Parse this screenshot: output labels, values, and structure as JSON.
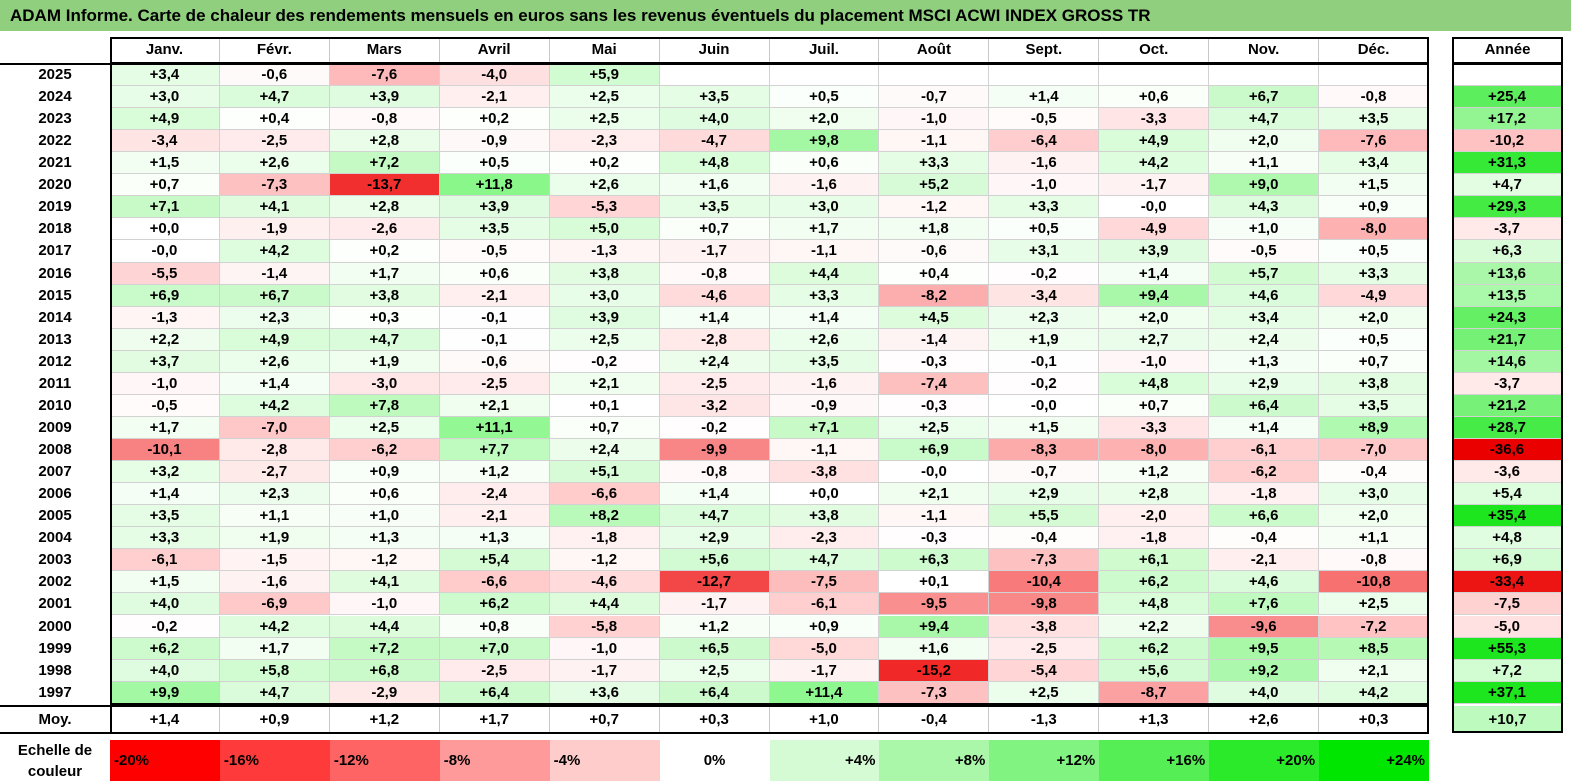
{
  "title": "ADAM Informe. Carte de chaleur des rendements mensuels en euros sans les revenus éventuels du placement MSCI ACWI INDEX GROSS TR",
  "chart_data": {
    "type": "heatmap",
    "title": "ADAM Informe. Carte de chaleur des rendements mensuels en euros sans les revenus éventuels du placement MSCI ACWI INDEX GROSS TR",
    "columns": [
      "Janv.",
      "Févr.",
      "Mars",
      "Avril",
      "Mai",
      "Juin",
      "Juil.",
      "Août",
      "Sept.",
      "Oct.",
      "Nov.",
      "Déc."
    ],
    "year_column_label": "Année",
    "rows": [
      {
        "year": "2025",
        "values": [
          "+3,4",
          "-0,6",
          "-7,6",
          "-4,0",
          "+5,9",
          "",
          "",
          "",
          "",
          "",
          "",
          ""
        ],
        "annual": ""
      },
      {
        "year": "2024",
        "values": [
          "+3,0",
          "+4,7",
          "+3,9",
          "-2,1",
          "+2,5",
          "+3,5",
          "+0,5",
          "-0,7",
          "+1,4",
          "+0,6",
          "+6,7",
          "-0,8"
        ],
        "annual": "+25,4"
      },
      {
        "year": "2023",
        "values": [
          "+4,9",
          "+0,4",
          "-0,8",
          "+0,2",
          "+2,5",
          "+4,0",
          "+2,0",
          "-1,0",
          "-0,5",
          "-3,3",
          "+4,7",
          "+3,5"
        ],
        "annual": "+17,2"
      },
      {
        "year": "2022",
        "values": [
          "-3,4",
          "-2,5",
          "+2,8",
          "-0,9",
          "-2,3",
          "-4,7",
          "+9,8",
          "-1,1",
          "-6,4",
          "+4,9",
          "+2,0",
          "-7,6"
        ],
        "annual": "-10,2"
      },
      {
        "year": "2021",
        "values": [
          "+1,5",
          "+2,6",
          "+7,2",
          "+0,5",
          "+0,2",
          "+4,8",
          "+0,6",
          "+3,3",
          "-1,6",
          "+4,2",
          "+1,1",
          "+3,4"
        ],
        "annual": "+31,3"
      },
      {
        "year": "2020",
        "values": [
          "+0,7",
          "-7,3",
          "-13,7",
          "+11,8",
          "+2,6",
          "+1,6",
          "-1,6",
          "+5,2",
          "-1,0",
          "-1,7",
          "+9,0",
          "+1,5"
        ],
        "annual": "+4,7"
      },
      {
        "year": "2019",
        "values": [
          "+7,1",
          "+4,1",
          "+2,8",
          "+3,9",
          "-5,3",
          "+3,5",
          "+3,0",
          "-1,2",
          "+3,3",
          "-0,0",
          "+4,3",
          "+0,9"
        ],
        "annual": "+29,3"
      },
      {
        "year": "2018",
        "values": [
          "+0,0",
          "-1,9",
          "-2,6",
          "+3,5",
          "+5,0",
          "+0,7",
          "+1,7",
          "+1,8",
          "+0,5",
          "-4,9",
          "+1,0",
          "-8,0"
        ],
        "annual": "-3,7"
      },
      {
        "year": "2017",
        "values": [
          "-0,0",
          "+4,2",
          "+0,2",
          "-0,5",
          "-1,3",
          "-1,7",
          "-1,1",
          "-0,6",
          "+3,1",
          "+3,9",
          "-0,5",
          "+0,5"
        ],
        "annual": "+6,3"
      },
      {
        "year": "2016",
        "values": [
          "-5,5",
          "-1,4",
          "+1,7",
          "+0,6",
          "+3,8",
          "-0,8",
          "+4,4",
          "+0,4",
          "-0,2",
          "+1,4",
          "+5,7",
          "+3,3"
        ],
        "annual": "+13,6"
      },
      {
        "year": "2015",
        "values": [
          "+6,9",
          "+6,7",
          "+3,8",
          "-2,1",
          "+3,0",
          "-4,6",
          "+3,3",
          "-8,2",
          "-3,4",
          "+9,4",
          "+4,6",
          "-4,9"
        ],
        "annual": "+13,5"
      },
      {
        "year": "2014",
        "values": [
          "-1,3",
          "+2,3",
          "+0,3",
          "-0,1",
          "+3,9",
          "+1,4",
          "+1,4",
          "+4,5",
          "+2,3",
          "+2,0",
          "+3,4",
          "+2,0"
        ],
        "annual": "+24,3"
      },
      {
        "year": "2013",
        "values": [
          "+2,2",
          "+4,9",
          "+4,7",
          "-0,1",
          "+2,5",
          "-2,8",
          "+2,6",
          "-1,4",
          "+1,9",
          "+2,7",
          "+2,4",
          "+0,5"
        ],
        "annual": "+21,7"
      },
      {
        "year": "2012",
        "values": [
          "+3,7",
          "+2,6",
          "+1,9",
          "-0,6",
          "-0,2",
          "+2,4",
          "+3,5",
          "-0,3",
          "-0,1",
          "-1,0",
          "+1,3",
          "+0,7"
        ],
        "annual": "+14,6"
      },
      {
        "year": "2011",
        "values": [
          "-1,0",
          "+1,4",
          "-3,0",
          "-2,5",
          "+2,1",
          "-2,5",
          "-1,6",
          "-7,4",
          "-0,2",
          "+4,8",
          "+2,9",
          "+3,8"
        ],
        "annual": "-3,7"
      },
      {
        "year": "2010",
        "values": [
          "-0,5",
          "+4,2",
          "+7,8",
          "+2,1",
          "+0,1",
          "-3,2",
          "-0,9",
          "-0,3",
          "-0,0",
          "+0,7",
          "+6,4",
          "+3,5"
        ],
        "annual": "+21,2"
      },
      {
        "year": "2009",
        "values": [
          "+1,7",
          "-7,0",
          "+2,5",
          "+11,1",
          "+0,7",
          "-0,2",
          "+7,1",
          "+2,5",
          "+1,5",
          "-3,3",
          "+1,4",
          "+8,9"
        ],
        "annual": "+28,7"
      },
      {
        "year": "2008",
        "values": [
          "-10,1",
          "-2,8",
          "-6,2",
          "+7,7",
          "+2,4",
          "-9,9",
          "-1,1",
          "+6,9",
          "-8,3",
          "-8,0",
          "-6,1",
          "-7,0"
        ],
        "annual": "-36,6"
      },
      {
        "year": "2007",
        "values": [
          "+3,2",
          "-2,7",
          "+0,9",
          "+1,2",
          "+5,1",
          "-0,8",
          "-3,8",
          "-0,0",
          "-0,7",
          "+1,2",
          "-6,2",
          "-0,4"
        ],
        "annual": "-3,6"
      },
      {
        "year": "2006",
        "values": [
          "+1,4",
          "+2,3",
          "+0,6",
          "-2,4",
          "-6,6",
          "+1,4",
          "+0,0",
          "+2,1",
          "+2,9",
          "+2,8",
          "-1,8",
          "+3,0"
        ],
        "annual": "+5,4"
      },
      {
        "year": "2005",
        "values": [
          "+3,5",
          "+1,1",
          "+1,0",
          "-2,1",
          "+8,2",
          "+4,7",
          "+3,8",
          "-1,1",
          "+5,5",
          "-2,0",
          "+6,6",
          "+2,0"
        ],
        "annual": "+35,4"
      },
      {
        "year": "2004",
        "values": [
          "+3,3",
          "+1,9",
          "+1,3",
          "+1,3",
          "-1,8",
          "+2,9",
          "-2,3",
          "-0,3",
          "-0,4",
          "-1,8",
          "-0,4",
          "+1,1"
        ],
        "annual": "+4,8"
      },
      {
        "year": "2003",
        "values": [
          "-6,1",
          "-1,5",
          "-1,2",
          "+5,4",
          "-1,2",
          "+5,6",
          "+4,7",
          "+6,3",
          "-7,3",
          "+6,1",
          "-2,1",
          "-0,8"
        ],
        "annual": "+6,9"
      },
      {
        "year": "2002",
        "values": [
          "+1,5",
          "-1,6",
          "+4,1",
          "-6,6",
          "-4,6",
          "-12,7",
          "-7,5",
          "+0,1",
          "-10,4",
          "+6,2",
          "+4,6",
          "-10,8"
        ],
        "annual": "-33,4"
      },
      {
        "year": "2001",
        "values": [
          "+4,0",
          "-6,9",
          "-1,0",
          "+6,2",
          "+4,4",
          "-1,7",
          "-6,1",
          "-9,5",
          "-9,8",
          "+4,8",
          "+7,6",
          "+2,5"
        ],
        "annual": "-7,5"
      },
      {
        "year": "2000",
        "values": [
          "-0,2",
          "+4,2",
          "+4,4",
          "+0,8",
          "-5,8",
          "+1,2",
          "+0,9",
          "+9,4",
          "-3,8",
          "+2,2",
          "-9,6",
          "-7,2"
        ],
        "annual": "-5,0"
      },
      {
        "year": "1999",
        "values": [
          "+6,2",
          "+1,7",
          "+7,2",
          "+7,0",
          "-1,0",
          "+6,5",
          "-5,0",
          "+1,6",
          "-2,5",
          "+6,2",
          "+9,5",
          "+8,5"
        ],
        "annual": "+55,3"
      },
      {
        "year": "1998",
        "values": [
          "+4,0",
          "+5,8",
          "+6,8",
          "-2,5",
          "-1,7",
          "+2,5",
          "-1,7",
          "-15,2",
          "-5,4",
          "+5,6",
          "+9,2",
          "+2,1"
        ],
        "annual": "+7,2"
      },
      {
        "year": "1997",
        "values": [
          "+9,9",
          "+4,7",
          "-2,9",
          "+6,4",
          "+3,6",
          "+6,4",
          "+11,4",
          "-7,3",
          "+2,5",
          "-8,7",
          "+4,0",
          "+4,2"
        ],
        "annual": "+37,1"
      }
    ],
    "average": {
      "label": "Moy.",
      "values": [
        "+1,4",
        "+0,9",
        "+1,2",
        "+1,7",
        "+0,7",
        "+0,3",
        "+1,0",
        "-0,4",
        "-1,3",
        "+1,3",
        "+2,6",
        "+0,3"
      ],
      "annual": "+10,7"
    },
    "scale": {
      "label_line1": "Echelle de",
      "label_line2": "couleur",
      "stops": [
        {
          "label": "-20%",
          "value": -20,
          "color": "#ff0000"
        },
        {
          "label": "-16%",
          "value": -16,
          "color": "#ff3a3a"
        },
        {
          "label": "-12%",
          "value": -12,
          "color": "#ff6464"
        },
        {
          "label": "-8%",
          "value": -8,
          "color": "#ff9a9a"
        },
        {
          "label": "-4%",
          "value": -4,
          "color": "#ffcccc"
        },
        {
          "label": "0%",
          "value": 0,
          "color": "#ffffff"
        },
        {
          "label": "+4%",
          "value": 4,
          "color": "#d4fbd4"
        },
        {
          "label": "+8%",
          "value": 8,
          "color": "#aaf7aa"
        },
        {
          "label": "+12%",
          "value": 12,
          "color": "#80f380"
        },
        {
          "label": "+16%",
          "value": 16,
          "color": "#55ef55"
        },
        {
          "label": "+20%",
          "value": 20,
          "color": "#2aea2a"
        },
        {
          "label": "+24%",
          "value": 24,
          "color": "#00e600"
        }
      ]
    }
  }
}
